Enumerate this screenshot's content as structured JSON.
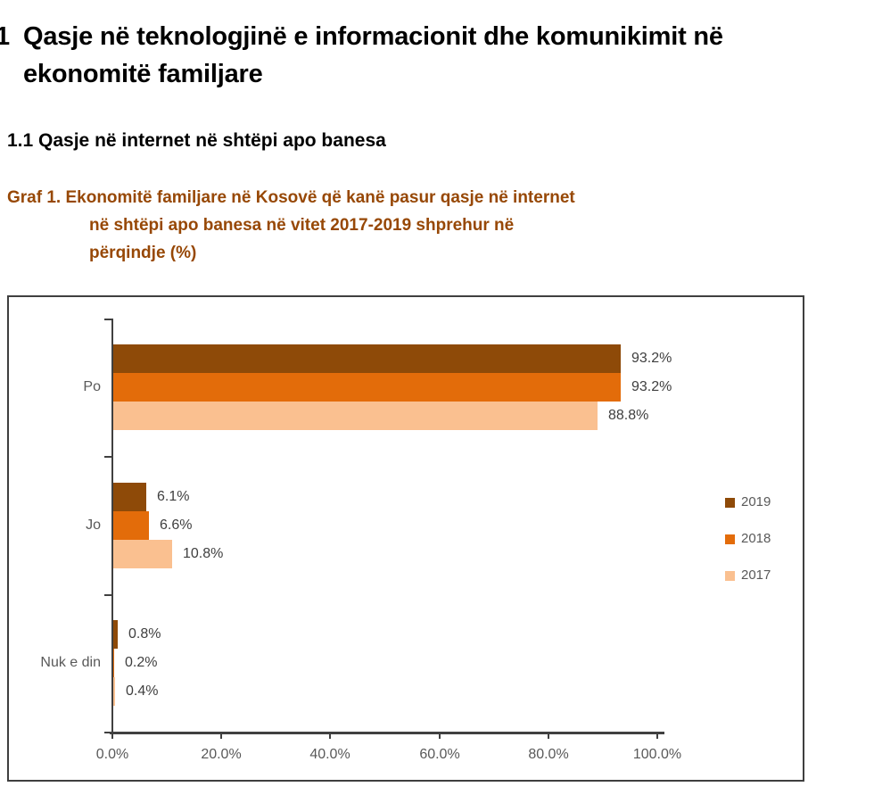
{
  "page": {
    "heading_number": "1",
    "heading_line1": "Qasje në teknologjinë e informacionit dhe komunikimit në",
    "heading_line2": "ekonomitë familjare",
    "subheading": "1.1 Qasje në internet në shtëpi apo banesa",
    "caption_lines": [
      "Graf 1. Ekonomitë familjare në Kosovë që kanë pasur qasje në internet",
      "në shtëpi apo banesa në vitet 2017-2019 shprehur në",
      "përqindje (%)"
    ],
    "caption_color": "#974806"
  },
  "chart_data": {
    "type": "bar",
    "orientation": "horizontal",
    "title": "Graf 1. Ekonomitë familjare në Kosovë që kanë pasur qasje në internet në shtëpi apo banesa në vitet 2017-2019 shprehur në përqindje (%)",
    "categories": [
      "Po",
      "Jo",
      "Nuk e din"
    ],
    "series": [
      {
        "name": "2019",
        "color": "#8e4a08",
        "values": [
          93.2,
          6.1,
          0.8
        ]
      },
      {
        "name": "2018",
        "color": "#e36c0a",
        "values": [
          93.2,
          6.6,
          0.2
        ]
      },
      {
        "name": "2017",
        "color": "#fac090",
        "values": [
          88.8,
          10.8,
          0.4
        ]
      }
    ],
    "value_labels": [
      [
        "93.2%",
        "6.1%",
        "0.8%"
      ],
      [
        "93.2%",
        "6.6%",
        "0.2%"
      ],
      [
        "88.8%",
        "10.8%",
        "0.4%"
      ]
    ],
    "x_ticks": [
      "0.0%",
      "20.0%",
      "40.0%",
      "60.0%",
      "80.0%",
      "100.0%"
    ],
    "xlim": [
      0,
      100
    ],
    "grid": false,
    "legend": {
      "position": "right",
      "entries": [
        "2019",
        "2018",
        "2017"
      ]
    },
    "colors": {
      "axis": "#404040",
      "labels": "#3f3f3f",
      "tick_text": "#595959"
    }
  }
}
